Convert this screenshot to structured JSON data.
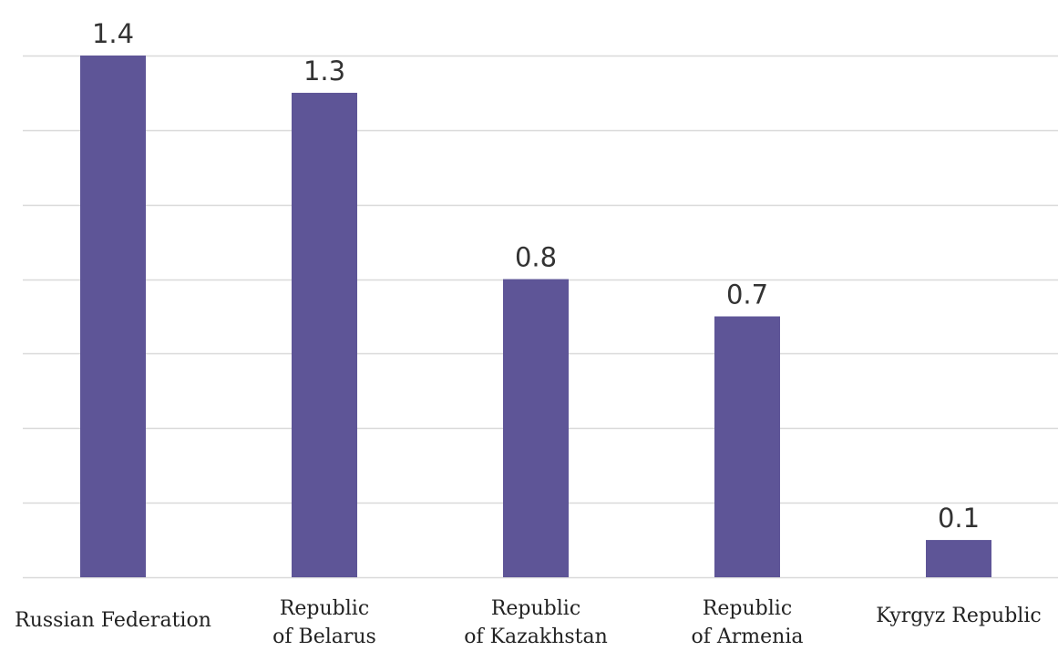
{
  "chart_data": {
    "type": "bar",
    "categories": [
      [
        "Russian Federation"
      ],
      [
        "Republic",
        "of Belarus"
      ],
      [
        "Republic",
        "of Kazakhstan"
      ],
      [
        "Republic",
        "of Armenia"
      ],
      [
        "Kyrgyz Republic"
      ]
    ],
    "values": [
      1.4,
      1.3,
      0.8,
      0.7,
      0.1
    ],
    "data_labels": [
      "1.4",
      "1.3",
      "0.8",
      "0.7",
      "0.1"
    ],
    "title": "",
    "xlabel": "",
    "ylabel": "",
    "ylim": [
      0,
      1.4
    ],
    "gridline_step": 0.2,
    "grid": true,
    "y_tick_labels_shown": false,
    "legend": "none",
    "colors": {
      "bar": "#5e5597",
      "grid": "#d9d9d9",
      "value_text": "#333333",
      "category_text": "#222222"
    }
  }
}
